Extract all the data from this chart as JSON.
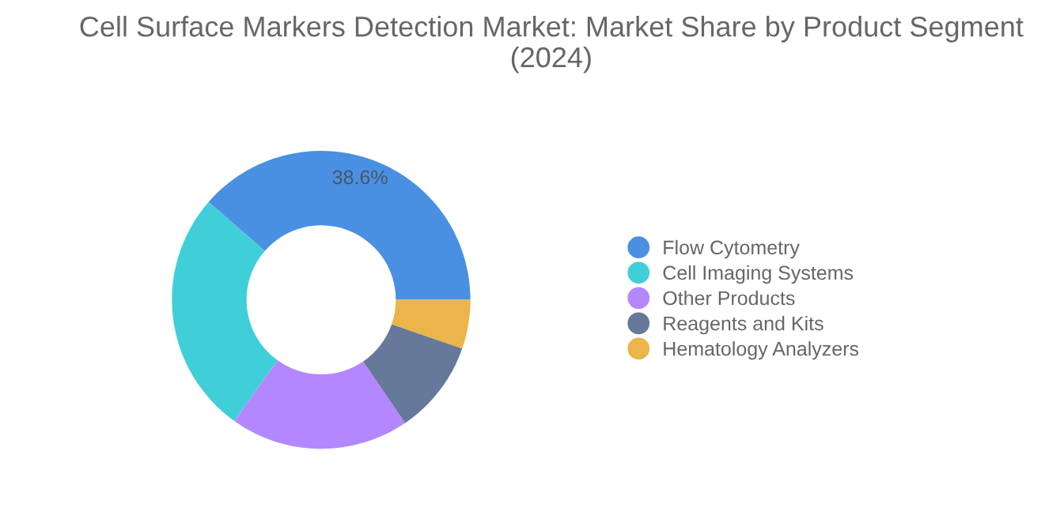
{
  "chart_data": {
    "type": "donut",
    "title": "Cell Surface Markers Detection Market: Market Share by Product Segment (2024)",
    "categories": [
      "Flow Cytometry",
      "Cell Imaging Systems",
      "Other Products",
      "Reagents and Kits",
      "Hematology Analyzers"
    ],
    "values": [
      38.6,
      26.5,
      19.4,
      10.2,
      5.3
    ],
    "colors": [
      "#4a90e2",
      "#40cfd8",
      "#b388ff",
      "#66799a",
      "#ebb54a"
    ],
    "value_labels": [
      "38.6%",
      null,
      null,
      null,
      null
    ],
    "legend": "right"
  }
}
